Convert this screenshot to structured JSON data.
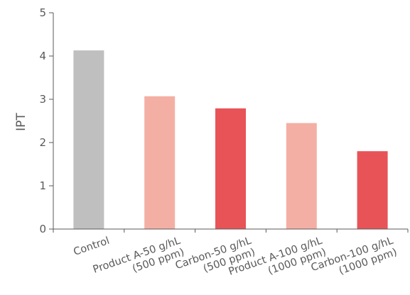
{
  "chart_data": {
    "type": "bar",
    "title": "",
    "xlabel": "",
    "ylabel": "IPT",
    "ylim": [
      0,
      5
    ],
    "yticks": [
      "0",
      "1",
      "2",
      "3",
      "4",
      "5"
    ],
    "grid": false,
    "categories": [
      {
        "line1": "Control",
        "line2": ""
      },
      {
        "line1": "Product A-50 g/hL",
        "line2": "(500 ppm)"
      },
      {
        "line1": "Carbon-50 g/hL",
        "line2": "(500 ppm)"
      },
      {
        "line1": "Product A-100 g/hL",
        "line2": "(1000 ppm)"
      },
      {
        "line1": "Carbon-100 g/hL",
        "line2": "(1000 ppm)"
      }
    ],
    "values": [
      4.13,
      3.07,
      2.79,
      2.45,
      1.8
    ],
    "bar_colors": [
      "#bfbfbf",
      "#f4afa4",
      "#e85357",
      "#f4afa4",
      "#e85357"
    ],
    "axis_color": "#595959"
  }
}
